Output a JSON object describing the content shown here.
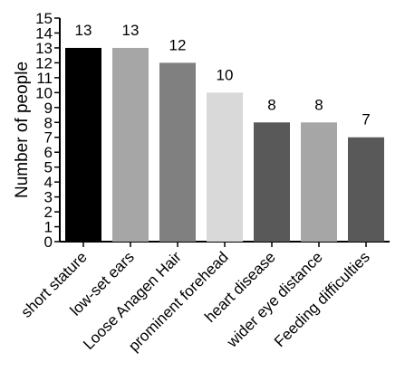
{
  "chart_data": {
    "type": "bar",
    "title": "",
    "xlabel": "",
    "ylabel": "Number of people",
    "ylim": [
      0,
      15
    ],
    "yticks": [
      0,
      1,
      2,
      3,
      4,
      5,
      6,
      7,
      8,
      9,
      10,
      11,
      12,
      13,
      14,
      15
    ],
    "grid": false,
    "categories": [
      "short stature",
      "low-set ears",
      "Loose Anagen Hair",
      "prominent forehead",
      "heart disease",
      "wider eye distance",
      "Feeding difficulties"
    ],
    "values": [
      13,
      13,
      12,
      10,
      8,
      8,
      7
    ],
    "colors": [
      "#000000",
      "#a6a6a6",
      "#808080",
      "#d9d9d9",
      "#595959",
      "#a6a6a6",
      "#595959"
    ]
  }
}
